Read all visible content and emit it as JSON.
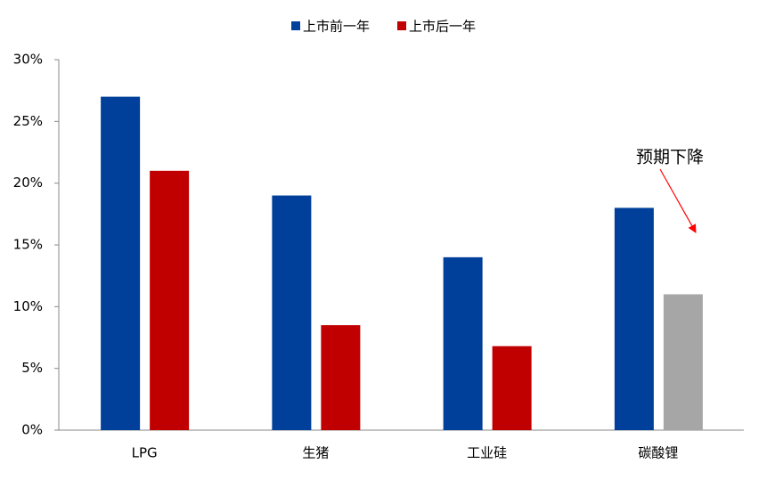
{
  "chart_data": {
    "type": "bar",
    "categories": [
      "LPG",
      "生猪",
      "工业硅",
      "碳酸锂"
    ],
    "series": [
      {
        "name": "上市前一年",
        "color": "#003f9a",
        "values": [
          27,
          19,
          14,
          18
        ]
      },
      {
        "name": "上市后一年",
        "color": "#c00000",
        "colors": [
          "#c00000",
          "#c00000",
          "#c00000",
          "#a6a6a6"
        ],
        "values": [
          21,
          8.5,
          6.8,
          11
        ]
      }
    ],
    "ylim": [
      0,
      30
    ],
    "yticks": [
      {
        "value": 0,
        "label": "0%"
      },
      {
        "value": 5,
        "label": "5%"
      },
      {
        "value": 10,
        "label": "10%"
      },
      {
        "value": 15,
        "label": "15%"
      },
      {
        "value": 20,
        "label": "20%"
      },
      {
        "value": 25,
        "label": "25%"
      },
      {
        "value": 30,
        "label": "30%"
      }
    ],
    "grid": false,
    "legend": "top",
    "annotation": "预期下降"
  }
}
